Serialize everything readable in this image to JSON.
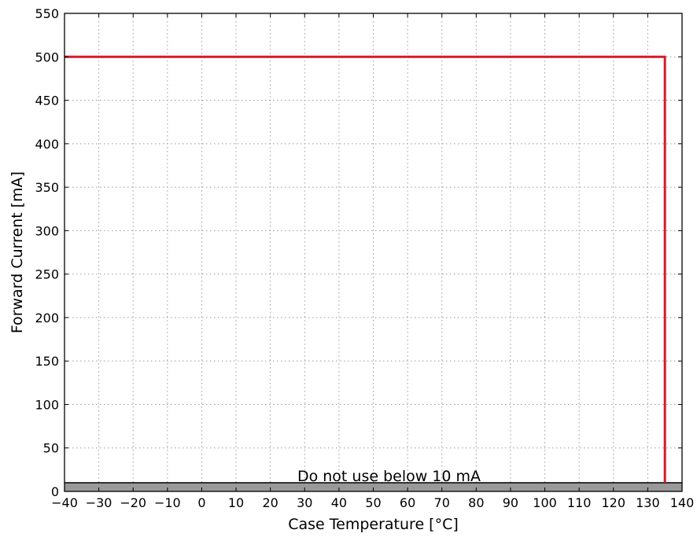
{
  "chart_data": {
    "type": "line",
    "title": "",
    "xlabel": "Case Temperature [°C]",
    "ylabel": "Forward Current [mA]",
    "xlim": [
      -40,
      140
    ],
    "ylim": [
      0,
      550
    ],
    "x_ticks": [
      -40,
      -30,
      -20,
      -10,
      0,
      10,
      20,
      30,
      40,
      50,
      60,
      70,
      80,
      90,
      100,
      110,
      120,
      130,
      140
    ],
    "x_tick_labels": [
      "−40",
      "−30",
      "−20",
      "−10",
      "0",
      "10",
      "20",
      "30",
      "40",
      "50",
      "60",
      "70",
      "80",
      "90",
      "100",
      "110",
      "120",
      "130",
      "140"
    ],
    "y_ticks": [
      0,
      50,
      100,
      150,
      200,
      250,
      300,
      350,
      400,
      450,
      500,
      550
    ],
    "y_tick_labels": [
      "0",
      "50",
      "100",
      "150",
      "200",
      "250",
      "300",
      "350",
      "400",
      "450",
      "500",
      "550"
    ],
    "grid": true,
    "series": [
      {
        "color": "#d7192b",
        "x": [
          -40,
          135,
          135
        ],
        "y": [
          500,
          500,
          10
        ]
      }
    ],
    "shaded_region": {
      "y_range": [
        0,
        10
      ],
      "color": "#999999",
      "label": "Do not use below 10 mA"
    }
  }
}
